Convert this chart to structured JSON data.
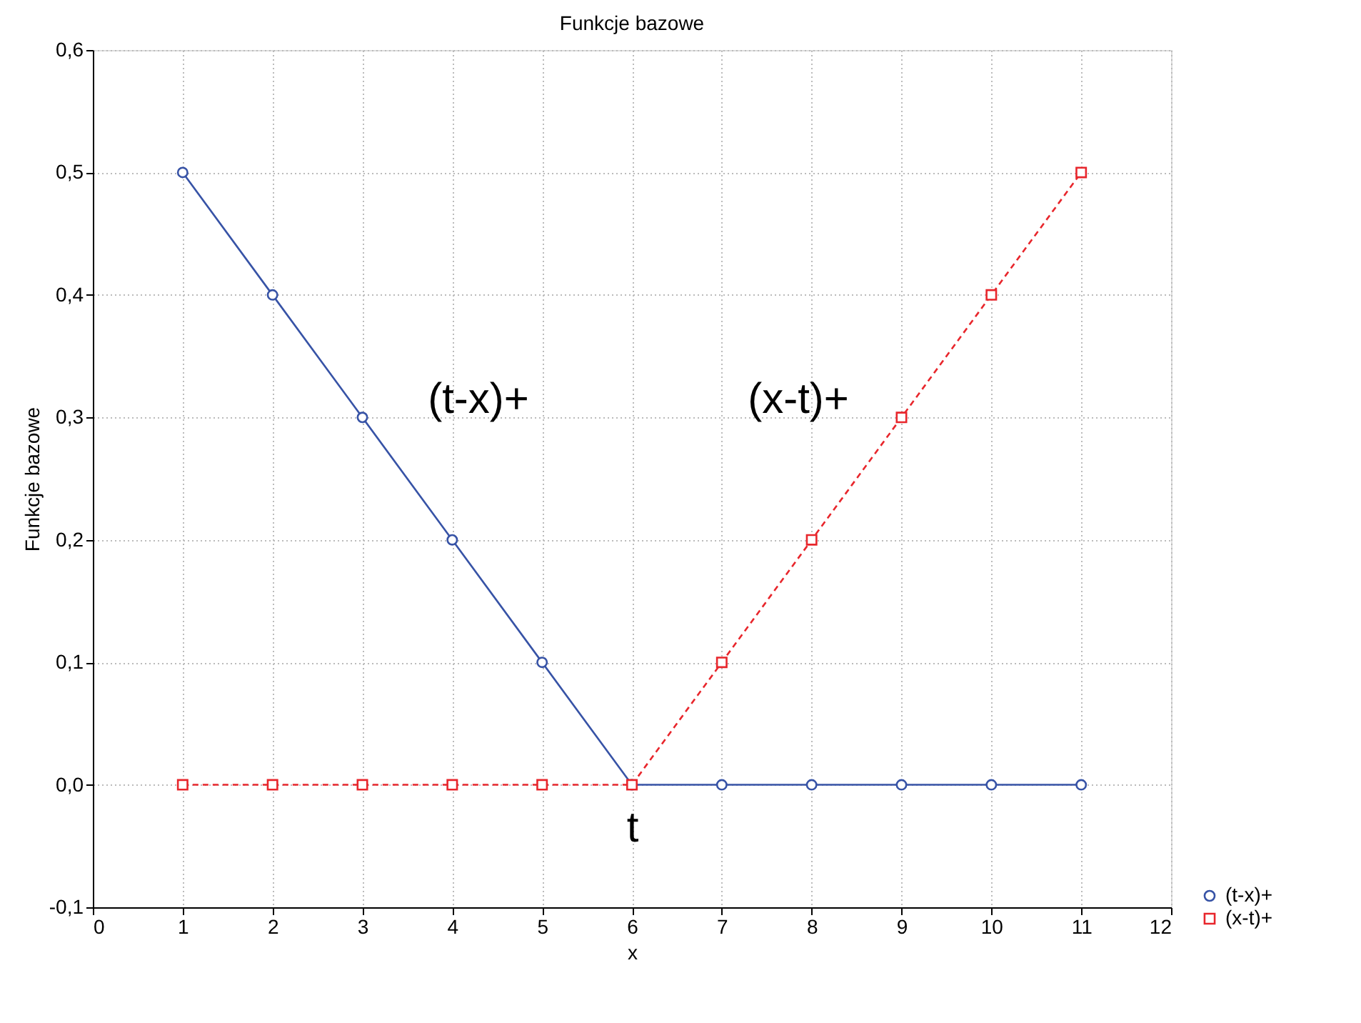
{
  "chart_data": {
    "type": "line",
    "title": "Funkcje bazowe",
    "xlabel": "x",
    "ylabel": "Funkcje bazowe",
    "x": [
      1,
      2,
      3,
      4,
      5,
      6,
      7,
      8,
      9,
      10,
      11
    ],
    "series": [
      {
        "name": "(t-x)+",
        "color": "#3753a6",
        "marker": "circle",
        "line_style": "solid",
        "values": [
          0.5,
          0.4,
          0.3,
          0.2,
          0.1,
          0,
          0,
          0,
          0,
          0,
          0
        ]
      },
      {
        "name": "(x-t)+",
        "color": "#e8262c",
        "marker": "square",
        "line_style": "dashed",
        "values": [
          0,
          0,
          0,
          0,
          0,
          0,
          0.1,
          0.2,
          0.3,
          0.4,
          0.5
        ]
      }
    ],
    "xlim": [
      0,
      12
    ],
    "xticks": [
      0,
      1,
      2,
      3,
      4,
      5,
      6,
      7,
      8,
      9,
      10,
      11,
      12
    ],
    "ylim": [
      -0.1,
      0.6
    ],
    "yticks": [
      {
        "value": -0.1,
        "label": "-0,1"
      },
      {
        "value": 0,
        "label": "0,0"
      },
      {
        "value": 0.1,
        "label": "0,1"
      },
      {
        "value": 0.2,
        "label": "0,2"
      },
      {
        "value": 0.3,
        "label": "0,3"
      },
      {
        "value": 0.4,
        "label": "0,4"
      },
      {
        "value": 0.5,
        "label": "0,5"
      },
      {
        "value": 0.6,
        "label": "0,6"
      }
    ],
    "annotations": [
      "(t-x)+",
      "(x-t)+",
      "t"
    ],
    "grid": true,
    "legend": "bottom right"
  }
}
